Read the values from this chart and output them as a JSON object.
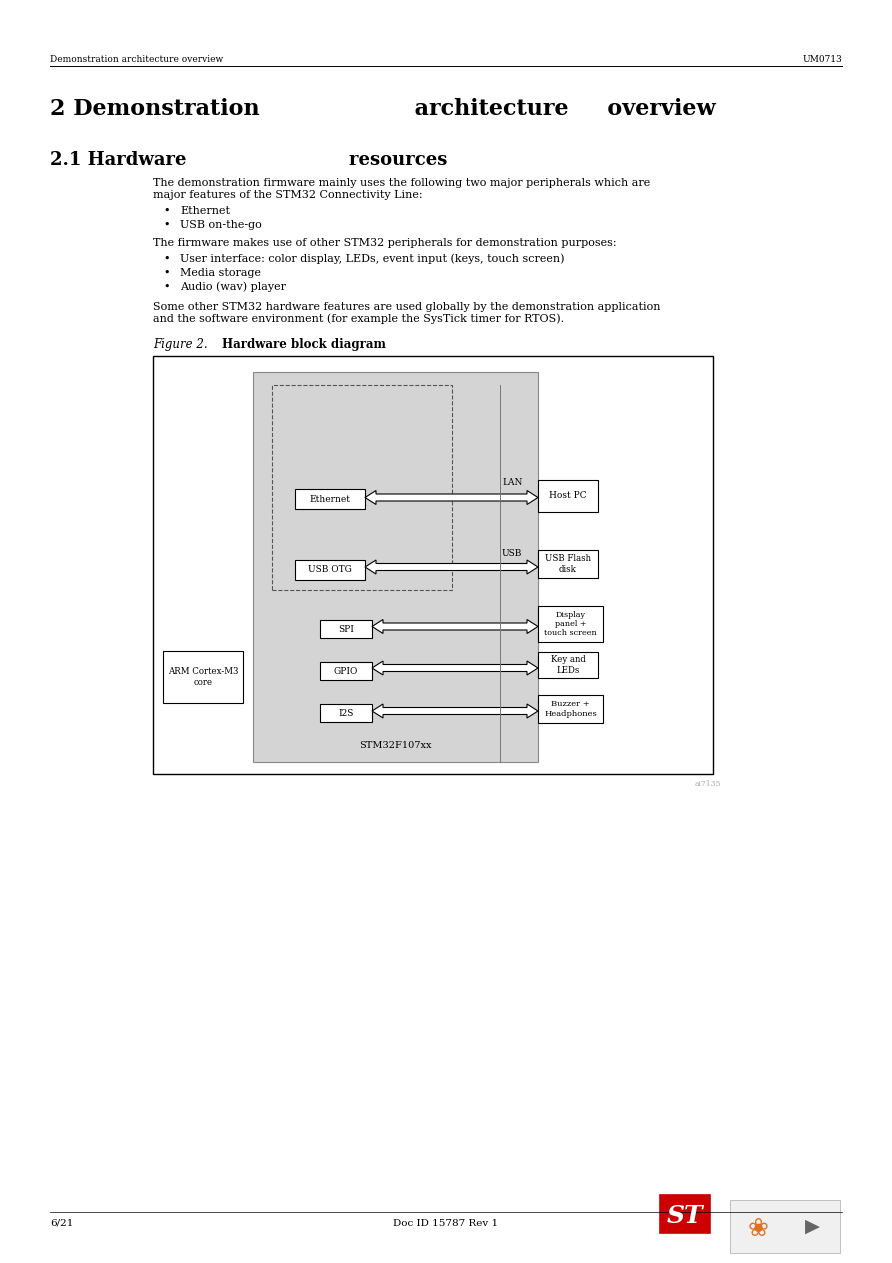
{
  "bg_color": "#ffffff",
  "header_left": "Demonstration architecture overview",
  "header_right": "UM0713",
  "h2_text": "2 Demonstration                    architecture     overview",
  "h21_text": "2.1 Hardware                          resources",
  "para1_line1": "The demonstration firmware mainly uses the following two major peripherals which are",
  "para1_line2": "major features of the STM32 Connectivity Line:",
  "bullets1": [
    "Ethernet",
    "USB on-the-go"
  ],
  "para2": "The firmware makes use of other STM32 peripherals for demonstration purposes:",
  "bullets2": [
    "User interface: color display, LEDs, event input (keys, touch screen)",
    "Media storage",
    "Audio (wav) player"
  ],
  "para3_line1": "Some other STM32 hardware features are used globally by the demonstration application",
  "para3_line2": "and the software environment (for example the SysTick timer for RTOS).",
  "fig_label": "Figure 2.",
  "fig_title": "Hardware block diagram",
  "footer_left": "6/21",
  "footer_center": "Doc ID 15787 Rev 1",
  "gray_chip": "#d4d4d4",
  "box_white": "#ffffff",
  "outer_border": "#000000",
  "chip_border": "#888888"
}
